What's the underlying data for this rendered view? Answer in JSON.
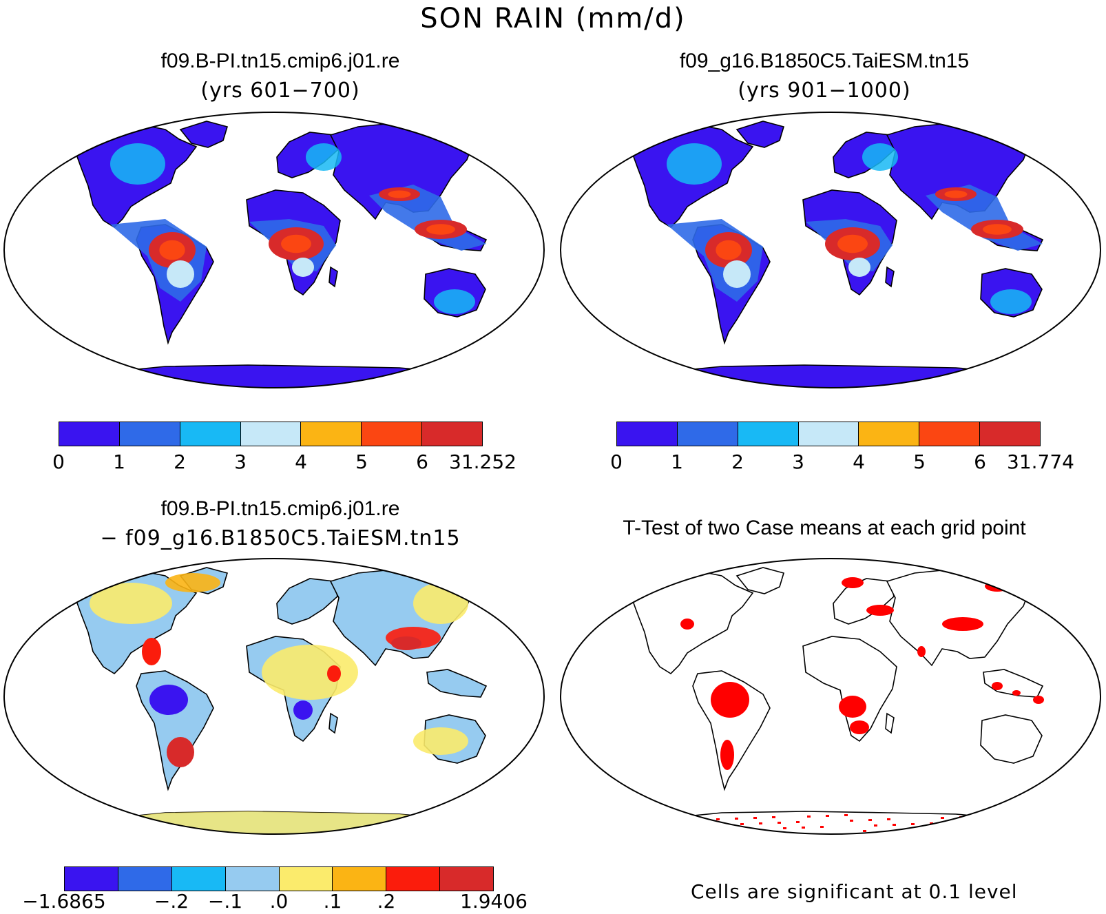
{
  "figure": {
    "title": "SON RAIN (mm/d)"
  },
  "panels": [
    {
      "id": "case1",
      "title": "f09.B-PI.tn15.cmip6.j01.re",
      "subtitle": "(yrs 601−700)",
      "colorbar": {
        "colors": [
          "#3a14f0",
          "#2f6ae8",
          "#18b9f5",
          "#c6e8f8",
          "#fbb414",
          "#fb4612",
          "#d82a2a"
        ],
        "labels": [
          "0",
          "1",
          "2",
          "3",
          "4",
          "5",
          "6",
          "31.252"
        ]
      }
    },
    {
      "id": "case2",
      "title": "f09_g16.B1850C5.TaiESM.tn15",
      "subtitle": "(yrs 901−1000)",
      "colorbar": {
        "colors": [
          "#3a14f0",
          "#2f6ae8",
          "#18b9f5",
          "#c6e8f8",
          "#fbb414",
          "#fb4612",
          "#d82a2a"
        ],
        "labels": [
          "0",
          "1",
          "2",
          "3",
          "4",
          "5",
          "6",
          "31.774"
        ]
      }
    },
    {
      "id": "difference",
      "title": "f09.B-PI.tn15.cmip6.j01.re",
      "subtitle": "− f09_g16.B1850C5.TaiESM.tn15",
      "colorbar": {
        "colors": [
          "#3a14f0",
          "#2f6ae8",
          "#18b9f5",
          "#96cbf0",
          "#fbeb6c",
          "#fbb414",
          "#fb1c0c",
          "#d82a2a"
        ],
        "labels": [
          "−1.6865",
          "",
          "−.2",
          "−.1",
          ".0",
          ".1",
          ".2",
          "",
          "1.9406"
        ]
      }
    },
    {
      "id": "ttest",
      "title": "T-Test of two Case means at each grid point",
      "note": "Cells are significant at 0.1 level",
      "significant_color": "#ff0000"
    }
  ]
}
